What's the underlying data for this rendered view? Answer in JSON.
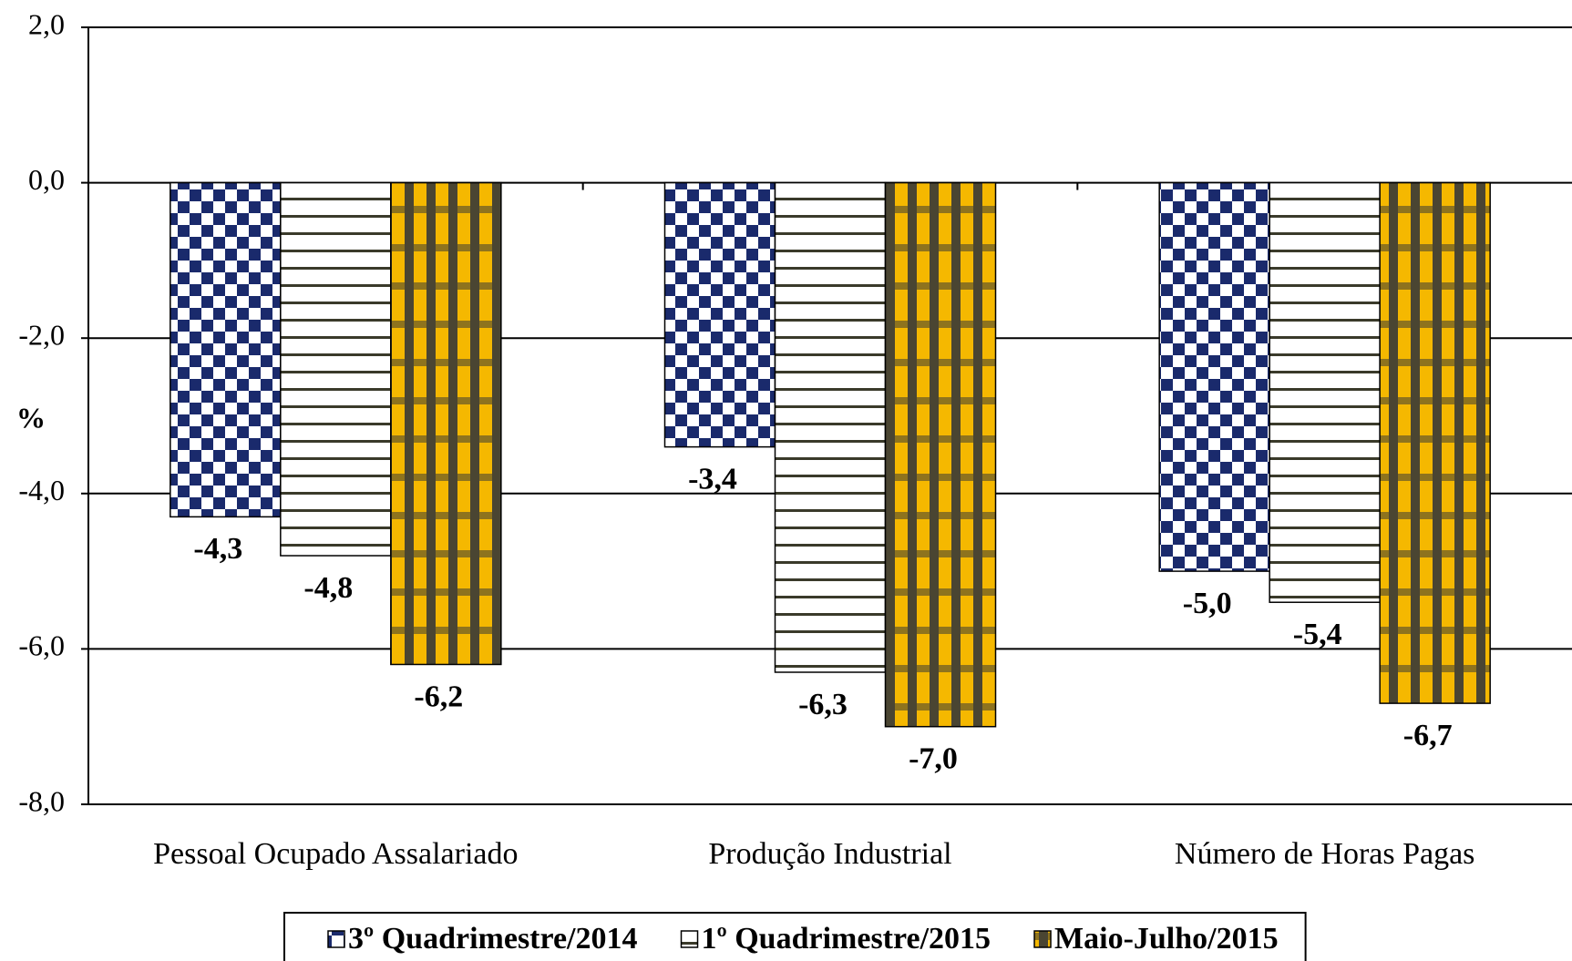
{
  "chart_data": {
    "type": "bar",
    "y_label": "%",
    "categories": [
      "Pessoal Ocupado Assalariado",
      "Produção Industrial",
      "Número de Horas Pagas"
    ],
    "series": [
      {
        "name": "3º Quadrimestre/2014",
        "color": "#1a2a6c",
        "values": [
          -4.3,
          -3.4,
          -5.0
        ],
        "value_labels": [
          "-4,3",
          "-3,4",
          "-5,0"
        ]
      },
      {
        "name": "1º Quadrimestre/2015",
        "color": "#3a3a2a",
        "values": [
          -4.8,
          -6.3,
          -5.4
        ],
        "value_labels": [
          "-4,8",
          "-6,3",
          "-5,4"
        ]
      },
      {
        "name": "Maio-Julho/2015",
        "color": "#f5b800",
        "values": [
          -6.2,
          -7.0,
          -6.7
        ],
        "value_labels": [
          "-6,2",
          "-7,0",
          "-6,7"
        ]
      }
    ],
    "ylim": [
      -8,
      2
    ],
    "yticks": [
      {
        "value": -8,
        "label": "-8,0"
      },
      {
        "value": -6,
        "label": "-6,0"
      },
      {
        "value": -4,
        "label": "-4,0"
      },
      {
        "value": -2,
        "label": "-2,0"
      },
      {
        "value": 0,
        "label": "0,0"
      },
      {
        "value": 2,
        "label": "2,0"
      }
    ],
    "grid": true
  }
}
